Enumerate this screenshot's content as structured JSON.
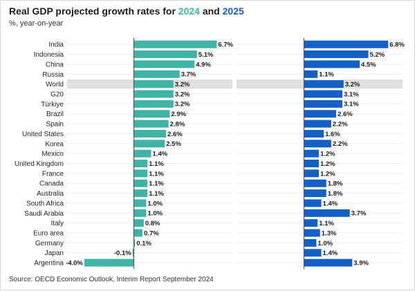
{
  "title": {
    "prefix": "Real GDP projected growth rates for ",
    "year1": "2024",
    "connector": " and ",
    "year2": "2025"
  },
  "subtitle": "%, year-on-year",
  "source": "Source: OECD Economic Outlook, Interim Report September 2024",
  "colors": {
    "series_2024": "#3fb3a5",
    "series_2025": "#1560c7",
    "highlight_band": "#dedede",
    "gridline": "#ececec",
    "zero_axis": "#555555"
  },
  "chart_data": {
    "type": "bar",
    "orientation": "horizontal",
    "highlight_category": "World",
    "categories": [
      "India",
      "Indonesia",
      "China",
      "Russia",
      "World",
      "G20",
      "Türkiye",
      "Brazil",
      "Spain",
      "United States",
      "Korea",
      "Mexico",
      "United Kingdom",
      "France",
      "Canada",
      "Australia",
      "South Africa",
      "Saudi Arabia",
      "Italy",
      "Euro area",
      "Germany",
      "Japan",
      "Argentina"
    ],
    "series": [
      {
        "name": "2024",
        "values": [
          6.7,
          5.1,
          4.9,
          3.7,
          3.2,
          3.2,
          3.2,
          2.9,
          2.8,
          2.6,
          2.5,
          1.4,
          1.1,
          1.1,
          1.1,
          1.1,
          1.0,
          1.0,
          0.8,
          0.7,
          0.1,
          -0.1,
          -4.0
        ],
        "labels": [
          "6.7%",
          "5.1%",
          "4.9%",
          "3.7%",
          "3.2%",
          "3.2%",
          "3.2%",
          "2.9%",
          "2.8%",
          "2.6%",
          "2.5%",
          "1.4%",
          "1.1%",
          "1.1%",
          "1.1%",
          "1.1%",
          "1.0%",
          "1.0%",
          "0.8%",
          "0.7%",
          "0.1%",
          "-0.1%",
          "-4.0%"
        ]
      },
      {
        "name": "2025",
        "values": [
          6.8,
          5.2,
          4.5,
          1.1,
          3.2,
          3.1,
          3.1,
          2.6,
          2.2,
          1.6,
          2.2,
          1.2,
          1.2,
          1.2,
          1.8,
          1.8,
          1.4,
          3.7,
          1.1,
          1.3,
          1.0,
          1.4,
          3.9
        ],
        "labels": [
          "6.8%",
          "5.2%",
          "4.5%",
          "1.1%",
          "3.2%",
          "3.1%",
          "3.1%",
          "2.6%",
          "2.2%",
          "1.6%",
          "2.2%",
          "1.2%",
          "1.2%",
          "1.2%",
          "1.8%",
          "1.8%",
          "1.4%",
          "3.7%",
          "1.1%",
          "1.3%",
          "1.0%",
          "1.4%",
          "3.9%"
        ]
      }
    ],
    "xlim": [
      -4.5,
      7.5
    ],
    "grid": "horizontal",
    "legend": "none"
  }
}
